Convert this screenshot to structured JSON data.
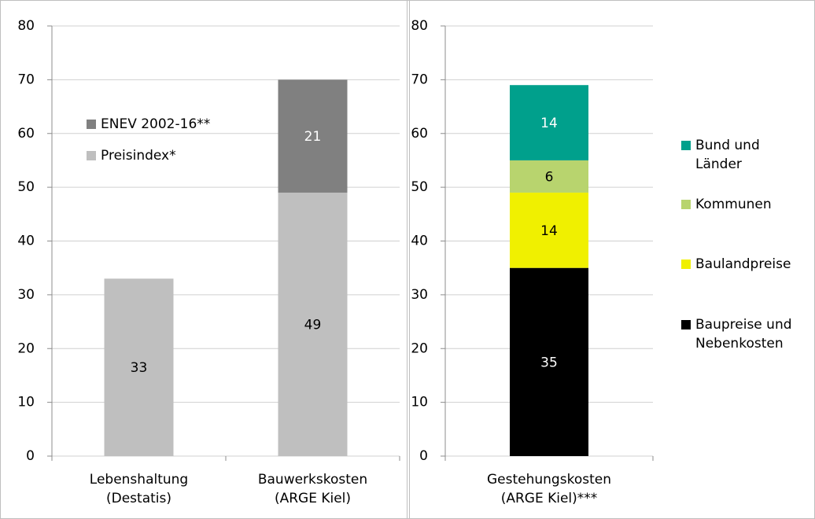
{
  "chart_data": [
    {
      "type": "bar",
      "stacked": true,
      "grid": true,
      "legend": "upper left",
      "categories": [
        "Lebenshaltung\n(Destatis)",
        "Bauwerkskosten\n(ARGE Kiel)"
      ],
      "series": [
        {
          "name": "Preisindex*",
          "color": "#bfbfbf",
          "values": [
            33,
            49
          ]
        },
        {
          "name": "ENEV 2002-16**",
          "color": "#808080",
          "values": [
            null,
            21
          ]
        }
      ],
      "ylim": [
        0,
        80
      ],
      "yticks": [
        0,
        10,
        20,
        30,
        40,
        50,
        60,
        70,
        80
      ]
    },
    {
      "type": "bar",
      "stacked": true,
      "grid": true,
      "legend": "right",
      "categories": [
        "Gestehungskosten\n(ARGE Kiel)***"
      ],
      "series": [
        {
          "name": "Baupreise und\nNebenkosten",
          "color": "#000000",
          "values": [
            35
          ]
        },
        {
          "name": "Baulandpreise",
          "color": "#f0f000",
          "values": [
            14
          ]
        },
        {
          "name": "Kommunen",
          "color": "#b8d46e",
          "values": [
            6
          ]
        },
        {
          "name": "Bund und\nLänder",
          "color": "#00a08c",
          "values": [
            14
          ]
        }
      ],
      "ylim": [
        0,
        80
      ],
      "yticks": [
        0,
        10,
        20,
        30,
        40,
        50,
        60,
        70,
        80
      ]
    }
  ]
}
